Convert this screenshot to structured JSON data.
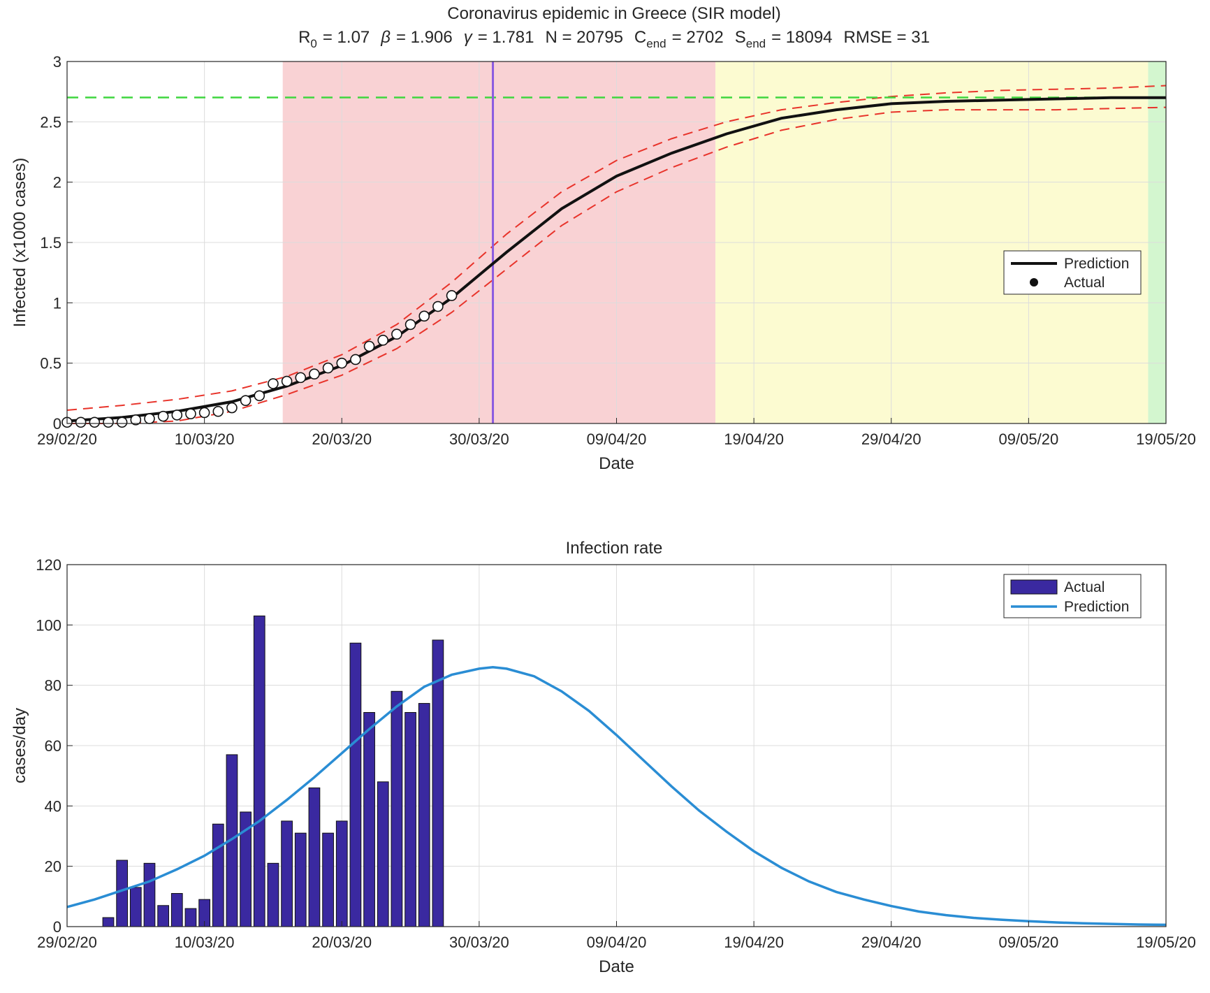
{
  "chart_data": [
    {
      "type": "line",
      "title": "Coronavirus epidemic in Greece (SIR model)",
      "subtitle": {
        "r0_label": "R",
        "r0_sub": "0",
        "r0_value": "=  1.07",
        "beta_label": "β",
        "beta_value": "=  1.906",
        "gamma_label": "γ",
        "gamma_value": "=  1.781",
        "n_text": "N =  20795",
        "cend_label": "C",
        "cend_sub": "end",
        "cend_value": "=  2702",
        "send_label": "S",
        "send_sub": "end",
        "send_value": "=  18094",
        "rmse_text": "RMSE =  31"
      },
      "xlabel": "Date",
      "ylabel": "Infected (x1000 cases)",
      "xlim": [
        0,
        80
      ],
      "ylim": [
        0,
        3
      ],
      "x_tick_positions": [
        0,
        10,
        20,
        30,
        40,
        50,
        60,
        70,
        80
      ],
      "x_tick_labels": [
        "29/02/20",
        "10/03/20",
        "20/03/20",
        "30/03/20",
        "09/04/20",
        "19/04/20",
        "29/04/20",
        "09/05/20",
        "19/05/20"
      ],
      "y_ticks": [
        0,
        0.5,
        1,
        1.5,
        2,
        2.5,
        3
      ],
      "y_tick_labels": [
        "0",
        "0.5",
        "1",
        "1.5",
        "2",
        "2.5",
        "3"
      ],
      "grid": true,
      "legend_position": "right",
      "background_bands": [
        {
          "x_from": 15.7,
          "x_to": 47.2,
          "color": "#f9d2d4"
        },
        {
          "x_from": 47.2,
          "x_to": 78.7,
          "color": "#fcfbd1"
        },
        {
          "x_from": 78.7,
          "x_to": 80,
          "color": "#d3f6cf"
        }
      ],
      "vertical_marker": {
        "x": 31.0,
        "color": "#8a5be0"
      },
      "hline": {
        "y": 2.702,
        "color": "#3fd63f"
      },
      "series": [
        {
          "name": "Prediction",
          "color": "#111111",
          "x": [
            0,
            4,
            8,
            12,
            16,
            20,
            24,
            28,
            32,
            36,
            40,
            44,
            48,
            52,
            56,
            60,
            64,
            68,
            72,
            76,
            80
          ],
          "y": [
            0.02,
            0.05,
            0.1,
            0.18,
            0.31,
            0.48,
            0.72,
            1.04,
            1.42,
            1.78,
            2.05,
            2.24,
            2.4,
            2.53,
            2.6,
            2.65,
            2.67,
            2.68,
            2.69,
            2.7,
            2.7
          ]
        },
        {
          "name": "Actual",
          "marker": "circle",
          "x": [
            0,
            1,
            2,
            3,
            4,
            5,
            6,
            7,
            8,
            9,
            10,
            11,
            12,
            13,
            14,
            15,
            16,
            17,
            18,
            19,
            20,
            21,
            22,
            23,
            24,
            25,
            26,
            27,
            28
          ],
          "y": [
            0.01,
            0.01,
            0.01,
            0.01,
            0.01,
            0.03,
            0.04,
            0.06,
            0.07,
            0.08,
            0.09,
            0.1,
            0.13,
            0.19,
            0.23,
            0.33,
            0.35,
            0.38,
            0.41,
            0.46,
            0.5,
            0.53,
            0.64,
            0.69,
            0.74,
            0.82,
            0.89,
            0.97,
            1.06
          ]
        }
      ],
      "confidence_band": {
        "color": "#e8332a",
        "x": [
          0,
          4,
          8,
          12,
          16,
          20,
          24,
          28,
          32,
          36,
          40,
          44,
          48,
          52,
          56,
          60,
          64,
          68,
          72,
          76,
          80
        ],
        "upper": [
          0.11,
          0.15,
          0.2,
          0.27,
          0.39,
          0.57,
          0.82,
          1.17,
          1.57,
          1.92,
          2.18,
          2.36,
          2.5,
          2.6,
          2.66,
          2.71,
          2.74,
          2.76,
          2.77,
          2.78,
          2.8
        ],
        "lower": [
          0.0,
          0.0,
          0.02,
          0.1,
          0.24,
          0.4,
          0.62,
          0.92,
          1.28,
          1.64,
          1.92,
          2.12,
          2.29,
          2.43,
          2.52,
          2.58,
          2.6,
          2.6,
          2.6,
          2.61,
          2.62
        ]
      }
    },
    {
      "type": "bar",
      "title": "Infection rate",
      "xlabel": "Date",
      "ylabel": "cases/day",
      "xlim": [
        0,
        80
      ],
      "ylim": [
        0,
        120
      ],
      "x_tick_positions": [
        0,
        10,
        20,
        30,
        40,
        50,
        60,
        70,
        80
      ],
      "x_tick_labels": [
        "29/02/20",
        "10/03/20",
        "20/03/20",
        "30/03/20",
        "09/04/20",
        "19/04/20",
        "29/04/20",
        "09/05/20",
        "19/05/20"
      ],
      "y_ticks": [
        0,
        20,
        40,
        60,
        80,
        100,
        120
      ],
      "y_tick_labels": [
        "0",
        "20",
        "40",
        "60",
        "80",
        "100",
        "120"
      ],
      "grid": true,
      "legend_position": "top-right",
      "series": [
        {
          "name": "Actual",
          "type": "bar",
          "color": "#3a29a0",
          "x": [
            3,
            4,
            5,
            6,
            7,
            8,
            9,
            10,
            11,
            12,
            13,
            14,
            15,
            16,
            17,
            18,
            19,
            20,
            21,
            22,
            23,
            24,
            25,
            26,
            27
          ],
          "values": [
            3,
            22,
            13,
            21,
            7,
            11,
            6,
            9,
            34,
            57,
            38,
            103,
            21,
            35,
            31,
            46,
            31,
            35,
            94,
            71,
            48,
            78,
            71,
            74,
            95
          ]
        },
        {
          "name": "Prediction",
          "type": "line",
          "color": "#2a8dd4",
          "x": [
            0,
            2,
            4,
            6,
            8,
            10,
            12,
            14,
            16,
            18,
            20,
            22,
            24,
            26,
            28,
            30,
            31,
            32,
            34,
            36,
            38,
            40,
            42,
            44,
            46,
            48,
            50,
            52,
            54,
            56,
            58,
            60,
            62,
            64,
            66,
            68,
            70,
            72,
            74,
            76,
            78,
            80
          ],
          "values": [
            6.5,
            9,
            12,
            15,
            19,
            23.5,
            29,
            35,
            42,
            49.5,
            57.5,
            65.5,
            73,
            79.5,
            83.5,
            85.5,
            86,
            85.5,
            83,
            78,
            71.5,
            63.5,
            55,
            46.5,
            38.5,
            31.5,
            25,
            19.5,
            15,
            11.5,
            9,
            6.8,
            5,
            3.8,
            2.9,
            2.3,
            1.8,
            1.4,
            1.1,
            0.9,
            0.7,
            0.6
          ]
        }
      ]
    }
  ]
}
